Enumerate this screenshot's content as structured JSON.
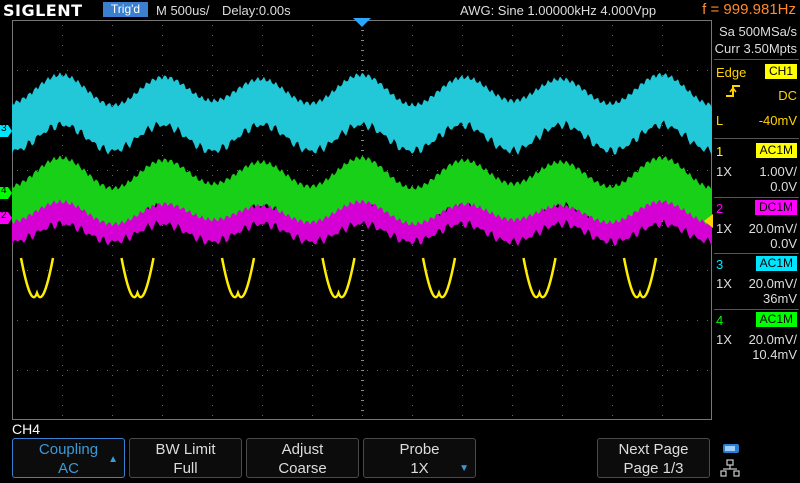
{
  "top": {
    "brand": "SIGLENT",
    "trigger_state": "Trig'd",
    "timebase": "M 500us/",
    "delay": "Delay:0.00s",
    "awg": "AWG: Sine  1.00000kHz  4.000Vpp",
    "frequency": "f = 999.981Hz"
  },
  "acquisition": {
    "sample_rate": "Sa 500MSa/s",
    "memory": "Curr 3.50Mpts"
  },
  "trigger": {
    "type": "Edge",
    "source": "CH1",
    "slope_icon": "rising-edge-icon",
    "coupling": "DC",
    "level_prefix": "L",
    "level": "-40mV"
  },
  "channels": [
    {
      "num": "1",
      "coupling": "AC1M",
      "probe": "1X",
      "scale": "1.00V/",
      "offset": "0.0V",
      "color": "#ffff00"
    },
    {
      "num": "2",
      "coupling": "DC1M",
      "probe": "1X",
      "scale": "20.0mV/",
      "offset": "0.0V",
      "color": "#ff00ff"
    },
    {
      "num": "3",
      "coupling": "AC1M",
      "probe": "1X",
      "scale": "20.0mV/",
      "offset": "36mV",
      "color": "#00e5ff"
    },
    {
      "num": "4",
      "coupling": "AC1M",
      "probe": "1X",
      "scale": "20.0mV/",
      "offset": "10.4mV",
      "color": "#00ff00"
    }
  ],
  "markers": {
    "ch3": "3",
    "ch4": "4",
    "ch2": "2"
  },
  "menu": {
    "title": "CH4",
    "softkeys": [
      {
        "title": "Coupling",
        "value": "AC"
      },
      {
        "title": "BW Limit",
        "value": "Full"
      },
      {
        "title": "Adjust",
        "value": "Coarse"
      },
      {
        "title": "Probe",
        "value": "1X"
      },
      {
        "title": "Next Page",
        "value": "Page 1/3"
      }
    ]
  },
  "colors": {
    "accent": "#3b7fd1",
    "freq": "#ff8a2a",
    "trigger": "#ffd400"
  }
}
